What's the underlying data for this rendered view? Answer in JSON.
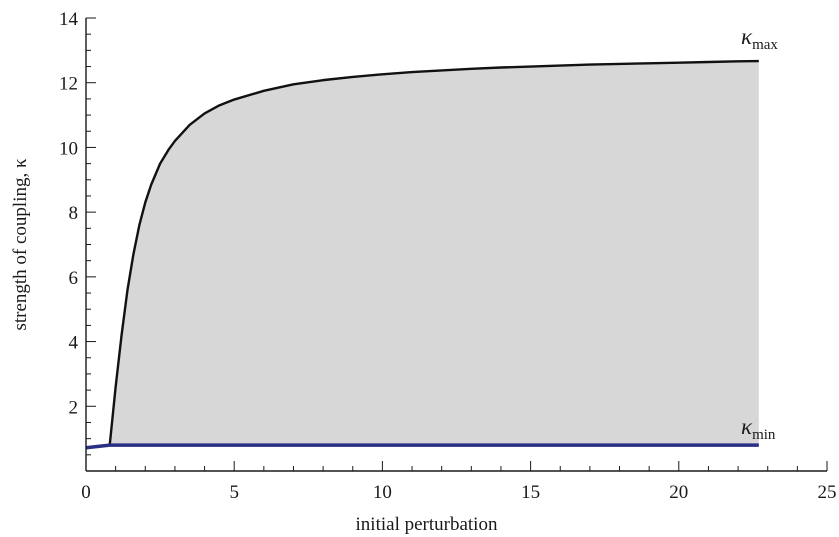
{
  "chart_data": {
    "type": "area",
    "xlabel": "initial perturbation",
    "ylabel": "strength of coupling, κ",
    "xlim": [
      0,
      25
    ],
    "ylim": [
      0,
      14
    ],
    "x_ticks": [
      0,
      5,
      10,
      15,
      20,
      25
    ],
    "y_ticks": [
      2,
      4,
      6,
      8,
      10,
      12,
      14
    ],
    "grid": false,
    "series": [
      {
        "name": "κmax",
        "color": "#111111",
        "x": [
          0.8,
          0.9,
          1.0,
          1.2,
          1.4,
          1.6,
          1.8,
          2.0,
          2.2,
          2.5,
          2.8,
          3.0,
          3.5,
          4.0,
          4.5,
          5.0,
          6.0,
          7.0,
          8.0,
          9.0,
          10.0,
          11.0,
          12.0,
          13.0,
          14.0,
          15.0,
          16.0,
          17.0,
          18.0,
          19.0,
          20.0,
          21.0,
          22.0,
          22.7
        ],
        "values": [
          0.8,
          1.7,
          2.6,
          4.2,
          5.6,
          6.7,
          7.6,
          8.3,
          8.85,
          9.5,
          9.95,
          10.2,
          10.7,
          11.05,
          11.3,
          11.48,
          11.75,
          11.95,
          12.08,
          12.18,
          12.26,
          12.33,
          12.38,
          12.43,
          12.47,
          12.5,
          12.53,
          12.56,
          12.58,
          12.6,
          12.62,
          12.64,
          12.66,
          12.67
        ]
      },
      {
        "name": "κmin",
        "color": "#2a2f86",
        "x": [
          0.0,
          0.8,
          22.7
        ],
        "values": [
          0.72,
          0.8,
          0.8
        ]
      }
    ],
    "fill_color": "#d7d7d7",
    "annotations": [
      {
        "symbol": "κ",
        "sub": "max",
        "x": 22.1,
        "y": 13.2
      },
      {
        "symbol": "κ",
        "sub": "min",
        "x": 22.1,
        "y": 1.15
      }
    ]
  }
}
